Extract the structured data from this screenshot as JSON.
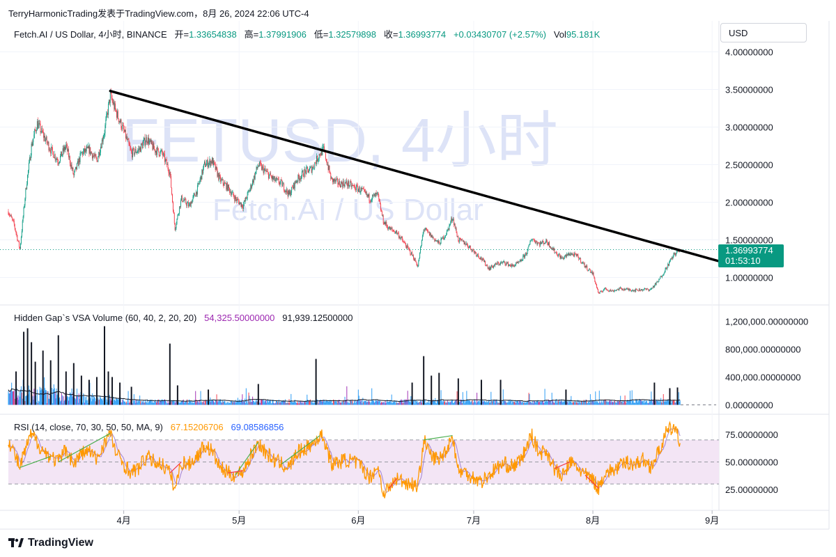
{
  "caption": "TerryHarmonicTrading发表于TradingView.com，8月 26, 2024 22:06 UTC-4",
  "header": {
    "symbol_text": "Fetch.AI / US Dollar, 4小时, BINANCE",
    "open_label": "开=",
    "open_value": "1.33654838",
    "high_label": "高=",
    "high_value": "1.37991906",
    "low_label": "低=",
    "low_value": "1.32579898",
    "close_label": "收=",
    "close_value": "1.36993774",
    "change_value": "+0.03430707 (+2.57%)",
    "vol_label": "Vol",
    "vol_value": "95.181K"
  },
  "currency": "USD",
  "watermark": {
    "line1": "FETUSD, 4小时",
    "line2": "Fetch.AI / US Dollar"
  },
  "price_tag": {
    "price": "1.36993774",
    "countdown": "01:53:10"
  },
  "volume_legend": {
    "title": "Hidden Gap`s VSA Volume (60, 40, 2, 20, 20)",
    "value1": "54,325.50000000",
    "value2": "91,939.12500000"
  },
  "rsi_legend": {
    "title": "RSI (14, close, 70, 30, 50, 50, MA, 9)",
    "value1": "67.15206706",
    "value2": "69.08586856"
  },
  "footer": {
    "brand": "TradingView",
    "logo_icon": "tradingview-logo-icon"
  },
  "colors": {
    "up": "#089981",
    "down": "#f23645",
    "rsi_line": "#ff9800",
    "rsi_ma": "#7e57c2",
    "rsi_band": "#f3e5f5",
    "trendline": "#000000",
    "vol_blue": "#2196f3",
    "vol_dark": "#131722",
    "vol_purple": "#9c27b0"
  },
  "chart_data": [
    {
      "type": "candlestick",
      "title": "FETUSD, 4小时",
      "y_axis_labels": [
        "4.00000000",
        "3.50000000",
        "3.00000000",
        "2.50000000",
        "2.00000000",
        "1.50000000",
        "1.00000000"
      ],
      "y_ticks": [
        4.0,
        3.5,
        3.0,
        2.5,
        2.0,
        1.5,
        1.0
      ],
      "ylim": [
        0.55,
        4.15
      ],
      "x_axis_labels": [
        "4月",
        "5月",
        "6月",
        "7月",
        "8月",
        "9月"
      ],
      "x_ticks_day": [
        30,
        60,
        91,
        121,
        152,
        183
      ],
      "xlim_day": [
        0,
        185
      ],
      "key_points_day_price": [
        [
          0,
          1.88
        ],
        [
          1.5,
          1.7
        ],
        [
          3,
          1.38
        ],
        [
          4.5,
          2.15
        ],
        [
          6,
          2.75
        ],
        [
          7.5,
          3.05
        ],
        [
          9,
          2.9
        ],
        [
          11,
          2.7
        ],
        [
          13,
          2.55
        ],
        [
          15,
          2.75
        ],
        [
          17,
          2.35
        ],
        [
          19,
          2.65
        ],
        [
          21,
          2.7
        ],
        [
          23,
          2.55
        ],
        [
          25,
          2.95
        ],
        [
          26.5,
          3.42
        ],
        [
          28,
          3.2
        ],
        [
          30,
          2.95
        ],
        [
          32,
          2.65
        ],
        [
          34,
          2.7
        ],
        [
          36,
          2.85
        ],
        [
          38,
          2.7
        ],
        [
          40,
          2.65
        ],
        [
          42,
          2.4
        ],
        [
          43.3,
          1.65
        ],
        [
          45,
          2.05
        ],
        [
          47,
          1.95
        ],
        [
          49,
          2.15
        ],
        [
          51,
          2.5
        ],
        [
          53,
          2.55
        ],
        [
          55,
          2.3
        ],
        [
          57,
          2.2
        ],
        [
          59,
          2.05
        ],
        [
          61,
          1.95
        ],
        [
          63,
          2.2
        ],
        [
          65,
          2.5
        ],
        [
          67,
          2.4
        ],
        [
          69,
          2.3
        ],
        [
          71,
          2.25
        ],
        [
          73,
          2.1
        ],
        [
          75,
          2.3
        ],
        [
          77,
          2.4
        ],
        [
          79,
          2.45
        ],
        [
          81,
          2.65
        ],
        [
          82,
          2.7
        ],
        [
          84,
          2.3
        ],
        [
          86,
          2.25
        ],
        [
          88,
          2.25
        ],
        [
          90,
          2.2
        ],
        [
          92,
          2.15
        ],
        [
          94,
          2.05
        ],
        [
          96,
          2.1
        ],
        [
          97.5,
          1.75
        ],
        [
          99,
          1.65
        ],
        [
          101,
          1.6
        ],
        [
          103,
          1.45
        ],
        [
          105,
          1.3
        ],
        [
          106.5,
          1.15
        ],
        [
          108,
          1.65
        ],
        [
          110,
          1.55
        ],
        [
          112,
          1.45
        ],
        [
          114,
          1.6
        ],
        [
          115.5,
          1.8
        ],
        [
          117,
          1.5
        ],
        [
          119,
          1.45
        ],
        [
          121,
          1.35
        ],
        [
          123,
          1.25
        ],
        [
          125,
          1.12
        ],
        [
          127,
          1.18
        ],
        [
          129,
          1.2
        ],
        [
          131,
          1.15
        ],
        [
          133,
          1.2
        ],
        [
          135,
          1.35
        ],
        [
          136,
          1.52
        ],
        [
          138,
          1.45
        ],
        [
          140,
          1.48
        ],
        [
          142,
          1.35
        ],
        [
          144,
          1.25
        ],
        [
          146,
          1.32
        ],
        [
          148,
          1.28
        ],
        [
          150,
          1.15
        ],
        [
          152,
          1.05
        ],
        [
          153.5,
          0.78
        ],
        [
          155,
          0.85
        ],
        [
          157,
          0.82
        ],
        [
          159,
          0.85
        ],
        [
          161,
          0.84
        ],
        [
          163,
          0.83
        ],
        [
          165,
          0.84
        ],
        [
          167,
          0.84
        ],
        [
          169,
          0.95
        ],
        [
          171,
          1.12
        ],
        [
          173,
          1.3
        ],
        [
          174.8,
          1.37
        ]
      ],
      "trendline_day_price": [
        [
          26.5,
          3.48
        ],
        [
          184.5,
          1.22
        ]
      ],
      "current_price": 1.36993774
    },
    {
      "type": "bar",
      "title": "Hidden Gap`s VSA Volume (60, 40, 2, 20, 20)",
      "y_axis_labels": [
        "1,200,000.00000000",
        "800,000.00000000",
        "400,000.00000000",
        "0.00000000"
      ],
      "y_ticks": [
        1200000,
        800000,
        400000,
        0
      ],
      "ylim": [
        0,
        1300000
      ],
      "tall_bars_day_value": [
        [
          2,
          480000
        ],
        [
          4,
          1050000
        ],
        [
          5,
          1100000
        ],
        [
          6,
          900000
        ],
        [
          7,
          620000
        ],
        [
          9,
          780000
        ],
        [
          11,
          640000
        ],
        [
          13,
          1000000
        ],
        [
          15,
          480000
        ],
        [
          17,
          600000
        ],
        [
          19,
          420000
        ],
        [
          21,
          360000
        ],
        [
          23,
          400000
        ],
        [
          25,
          1130000
        ],
        [
          26,
          480000
        ],
        [
          27,
          400000
        ],
        [
          29,
          320000
        ],
        [
          32,
          260000
        ],
        [
          42,
          880000
        ],
        [
          44,
          280000
        ],
        [
          52,
          220000
        ],
        [
          65,
          300000
        ],
        [
          80,
          660000
        ],
        [
          105,
          320000
        ],
        [
          108,
          700000
        ],
        [
          110,
          420000
        ],
        [
          112,
          460000
        ],
        [
          117,
          380000
        ],
        [
          123,
          360000
        ],
        [
          128,
          360000
        ],
        [
          145,
          220000
        ],
        [
          168,
          320000
        ],
        [
          172,
          240000
        ],
        [
          174,
          250000
        ]
      ]
    },
    {
      "type": "line",
      "title": "RSI (14, close, 70, 30, 50, 50, MA, 9)",
      "y_axis_labels": [
        "75.00000000",
        "50.00000000",
        "25.00000000"
      ],
      "y_ticks": [
        75,
        50,
        25
      ],
      "ylim": [
        15,
        89
      ],
      "bands": [
        70,
        50,
        30
      ],
      "key_points_day_value": [
        [
          0,
          70
        ],
        [
          1.5,
          58
        ],
        [
          3,
          45
        ],
        [
          4.5,
          62
        ],
        [
          6,
          75
        ],
        [
          7.5,
          68
        ],
        [
          9,
          60
        ],
        [
          11,
          55
        ],
        [
          13,
          50
        ],
        [
          15,
          62
        ],
        [
          17,
          48
        ],
        [
          19,
          58
        ],
        [
          21,
          60
        ],
        [
          23,
          52
        ],
        [
          25,
          68
        ],
        [
          26.5,
          76
        ],
        [
          28,
          58
        ],
        [
          30,
          48
        ],
        [
          32,
          40
        ],
        [
          34,
          45
        ],
        [
          36,
          55
        ],
        [
          38,
          50
        ],
        [
          40,
          48
        ],
        [
          42,
          40
        ],
        [
          43.3,
          25
        ],
        [
          45,
          50
        ],
        [
          47,
          48
        ],
        [
          49,
          55
        ],
        [
          51,
          65
        ],
        [
          53,
          60
        ],
        [
          55,
          45
        ],
        [
          57,
          40
        ],
        [
          59,
          38
        ],
        [
          61,
          42
        ],
        [
          63,
          55
        ],
        [
          65,
          68
        ],
        [
          67,
          58
        ],
        [
          69,
          52
        ],
        [
          71,
          48
        ],
        [
          73,
          45
        ],
        [
          75,
          58
        ],
        [
          77,
          62
        ],
        [
          79,
          66
        ],
        [
          81,
          74
        ],
        [
          82,
          72
        ],
        [
          84,
          48
        ],
        [
          86,
          50
        ],
        [
          88,
          52
        ],
        [
          90,
          50
        ],
        [
          92,
          45
        ],
        [
          94,
          36
        ],
        [
          96,
          46
        ],
        [
          97.5,
          22
        ],
        [
          99,
          26
        ],
        [
          101,
          35
        ],
        [
          103,
          32
        ],
        [
          105,
          30
        ],
        [
          106.5,
          28
        ],
        [
          108,
          70
        ],
        [
          110,
          55
        ],
        [
          112,
          52
        ],
        [
          114,
          62
        ],
        [
          115.5,
          74
        ],
        [
          117,
          42
        ],
        [
          119,
          40
        ],
        [
          121,
          36
        ],
        [
          123,
          32
        ],
        [
          125,
          38
        ],
        [
          127,
          45
        ],
        [
          129,
          48
        ],
        [
          131,
          46
        ],
        [
          133,
          50
        ],
        [
          135,
          65
        ],
        [
          136,
          75
        ],
        [
          138,
          58
        ],
        [
          140,
          60
        ],
        [
          142,
          44
        ],
        [
          144,
          36
        ],
        [
          146,
          50
        ],
        [
          148,
          45
        ],
        [
          150,
          38
        ],
        [
          152,
          34
        ],
        [
          153.5,
          26
        ],
        [
          155,
          40
        ],
        [
          157,
          42
        ],
        [
          159,
          46
        ],
        [
          161,
          50
        ],
        [
          163,
          48
        ],
        [
          165,
          52
        ],
        [
          167,
          46
        ],
        [
          169,
          58
        ],
        [
          171,
          76
        ],
        [
          173,
          82
        ],
        [
          174.8,
          67
        ]
      ],
      "current_value": 67.15206706,
      "ma_value": 69.08586856
    }
  ]
}
